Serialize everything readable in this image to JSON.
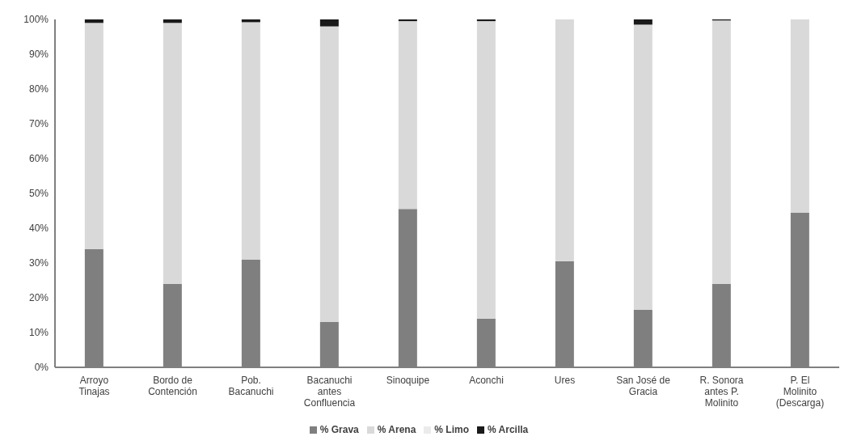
{
  "chart_data": {
    "type": "bar",
    "stacked": true,
    "categories": [
      "Arroyo Tinajas",
      "Bordo de Contención",
      "Pob. Bacanuchi",
      "Bacanuchi antes Confluencia",
      "Sinoquipe",
      "Aconchi",
      "Ures",
      "San José de Gracia",
      "R. Sonora antes P. Molinito",
      "P. El Molinito (Descarga)"
    ],
    "series": [
      {
        "name": "% Grava",
        "color": "#7f7f7f",
        "values": [
          34,
          24,
          31,
          13,
          45.5,
          14,
          30.5,
          16.5,
          24,
          44.5
        ]
      },
      {
        "name": "% Arena",
        "color": "#d9d9d9",
        "values": [
          65,
          75,
          68.2,
          85,
          54,
          85.5,
          69.5,
          82,
          75.7,
          55.5
        ]
      },
      {
        "name": "% Limo",
        "color": "#ebebeb",
        "values": [
          null,
          null,
          null,
          null,
          null,
          null,
          null,
          null,
          null,
          null
        ]
      },
      {
        "name": "% Arcilla",
        "color": "#1a1a1a",
        "values": [
          1,
          1,
          0.8,
          2,
          0.5,
          0.5,
          0,
          1.5,
          0.3,
          0
        ]
      }
    ],
    "ylim": [
      0,
      100
    ],
    "yticks": [
      {
        "value": 0,
        "label": "0%"
      },
      {
        "value": 10,
        "label": "10%"
      },
      {
        "value": 20,
        "label": "20%"
      },
      {
        "value": 30,
        "label": "30%"
      },
      {
        "value": 40,
        "label": "40%"
      },
      {
        "value": 50,
        "label": "50%"
      },
      {
        "value": 60,
        "label": "60%"
      },
      {
        "value": 70,
        "label": "70%"
      },
      {
        "value": 80,
        "label": "80%"
      },
      {
        "value": 90,
        "label": "90%"
      },
      {
        "value": 100,
        "label": "100%"
      }
    ],
    "grid": false,
    "legend": "bottom"
  }
}
